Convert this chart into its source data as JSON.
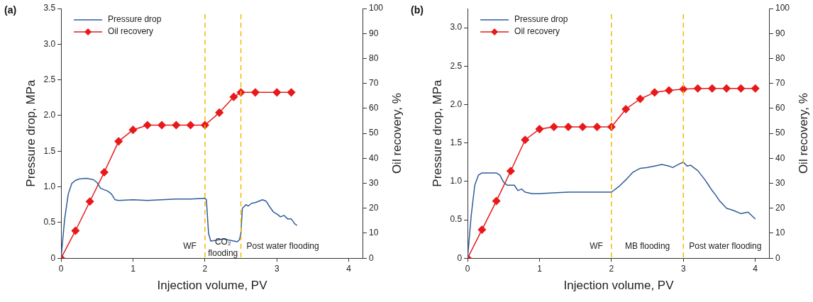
{
  "chart_data": [
    {
      "type": "line",
      "title": "(a)",
      "xlabel": "Injection volume, PV",
      "ylabel": "Pressure drop, MPa",
      "y2label": "Oil recovery, %",
      "xlim": [
        0,
        4.2
      ],
      "xticks": [
        0,
        1,
        2,
        3,
        4
      ],
      "ylim": [
        0,
        3.5
      ],
      "yticks": [
        0,
        0.5,
        {
          "value": 1,
          "label": "1.0"
        },
        1.5,
        {
          "value": 2,
          "label": "2.0"
        },
        2.5,
        {
          "value": 3,
          "label": "3.0"
        },
        3.5
      ],
      "y2lim": [
        0,
        100
      ],
      "y2ticks": [
        0,
        10,
        20,
        30,
        40,
        50,
        60,
        70,
        80,
        90,
        100
      ],
      "grid": false,
      "legend": "top left",
      "series": [
        {
          "name": "Pressure drop",
          "color": "#2e5c9a",
          "marker": "none",
          "x": [
            0,
            0.05,
            0.1,
            0.15,
            0.2,
            0.25,
            0.35,
            0.45,
            0.5,
            0.55,
            0.65,
            0.7,
            0.75,
            0.8,
            1.0,
            1.2,
            1.4,
            1.6,
            1.8,
            2.0,
            2.02,
            2.05,
            2.08,
            2.15,
            2.25,
            2.35,
            2.45,
            2.48,
            2.5,
            2.52,
            2.57,
            2.6,
            2.65,
            2.7,
            2.75,
            2.8,
            2.85,
            2.9,
            2.95,
            3.0,
            3.05,
            3.1,
            3.15,
            3.2,
            3.25,
            3.28
          ],
          "values": [
            0,
            0.55,
            0.9,
            1.05,
            1.09,
            1.11,
            1.12,
            1.1,
            1.06,
            0.98,
            0.94,
            0.9,
            0.82,
            0.81,
            0.82,
            0.81,
            0.82,
            0.83,
            0.83,
            0.84,
            0.82,
            0.35,
            0.24,
            0.25,
            0.27,
            0.25,
            0.23,
            0.26,
            0.35,
            0.7,
            0.75,
            0.73,
            0.77,
            0.78,
            0.8,
            0.82,
            0.8,
            0.72,
            0.65,
            0.62,
            0.58,
            0.6,
            0.55,
            0.55,
            0.48,
            0.46
          ]
        },
        {
          "name": "Oil recovery",
          "color": "#e8191b",
          "marker": "diamond",
          "axis": "y2",
          "x": [
            0,
            0.2,
            0.4,
            0.6,
            0.8,
            1.0,
            1.2,
            1.4,
            1.6,
            1.8,
            2.0,
            2.2,
            2.4,
            2.5,
            2.7,
            3.0,
            3.2
          ],
          "values": [
            0,
            11,
            22.7,
            34.4,
            46.8,
            51.4,
            53.3,
            53.3,
            53.3,
            53.3,
            53.3,
            58.3,
            64.6,
            66.4,
            66.4,
            66.4,
            66.4
          ]
        }
      ],
      "ref_lines": [
        {
          "axis": "x",
          "value": 2,
          "color": "#f5b800",
          "line_style": "dashed"
        },
        {
          "axis": "x",
          "value": 2.5,
          "color": "#f5b800",
          "line_style": "dashed"
        }
      ],
      "annotations": [
        "WF",
        "CO₂\nflooding",
        "Post water flooding"
      ]
    },
    {
      "type": "line",
      "title": "(b)",
      "xlabel": "Injection volume, PV",
      "ylabel": "Pressure drop, MPa",
      "y2label": "Oil recovery, %",
      "xlim": [
        0,
        4.2
      ],
      "xticks": [
        0,
        1,
        2,
        3,
        4
      ],
      "ylim": [
        0,
        3.25
      ],
      "yticks": [
        0,
        0.5,
        {
          "value": 1,
          "label": "1.0"
        },
        1.5,
        {
          "value": 2,
          "label": "2.0"
        },
        2.5,
        {
          "value": 3,
          "label": "3.0"
        }
      ],
      "y2lim": [
        0,
        100
      ],
      "y2ticks": [
        0,
        10,
        20,
        30,
        40,
        50,
        60,
        70,
        80,
        90,
        100
      ],
      "grid": false,
      "legend": "top left",
      "series": [
        {
          "name": "Pressure drop",
          "color": "#2e5c9a",
          "marker": "none",
          "x": [
            0,
            0.05,
            0.1,
            0.15,
            0.2,
            0.3,
            0.4,
            0.45,
            0.5,
            0.55,
            0.65,
            0.7,
            0.75,
            0.8,
            0.9,
            1.0,
            1.2,
            1.4,
            1.6,
            1.8,
            2.0,
            2.1,
            2.2,
            2.3,
            2.4,
            2.5,
            2.6,
            2.7,
            2.8,
            2.85,
            2.95,
            3.0,
            3.05,
            3.1,
            3.2,
            3.3,
            3.35,
            3.4,
            3.45,
            3.5,
            3.6,
            3.7,
            3.8,
            3.9,
            4.0
          ],
          "values": [
            0,
            0.55,
            0.95,
            1.08,
            1.11,
            1.11,
            1.11,
            1.08,
            0.99,
            0.95,
            0.95,
            0.88,
            0.9,
            0.86,
            0.84,
            0.84,
            0.85,
            0.86,
            0.86,
            0.86,
            0.86,
            0.93,
            1.02,
            1.12,
            1.17,
            1.18,
            1.2,
            1.22,
            1.2,
            1.18,
            1.23,
            1.25,
            1.2,
            1.21,
            1.14,
            1.02,
            0.95,
            0.88,
            0.82,
            0.75,
            0.65,
            0.62,
            0.58,
            0.6,
            0.51
          ]
        },
        {
          "name": "Oil recovery",
          "color": "#e8191b",
          "marker": "diamond",
          "axis": "y2",
          "x": [
            0,
            0.2,
            0.4,
            0.6,
            0.8,
            1.0,
            1.2,
            1.4,
            1.6,
            1.8,
            2.0,
            2.2,
            2.4,
            2.6,
            2.8,
            3.0,
            3.2,
            3.4,
            3.6,
            3.8,
            4.0
          ],
          "values": [
            0,
            11.4,
            22.9,
            34.9,
            47.4,
            51.7,
            52.6,
            52.6,
            52.6,
            52.6,
            52.6,
            59.7,
            63.8,
            66.4,
            67.2,
            67.7,
            68,
            68,
            68,
            68,
            68
          ]
        }
      ],
      "ref_lines": [
        {
          "axis": "x",
          "value": 2,
          "color": "#f5b800",
          "line_style": "dashed"
        },
        {
          "axis": "x",
          "value": 3,
          "color": "#f5b800",
          "line_style": "dashed"
        }
      ],
      "annotations": [
        "WF",
        "MB flooding",
        "Post water flooding"
      ]
    }
  ]
}
